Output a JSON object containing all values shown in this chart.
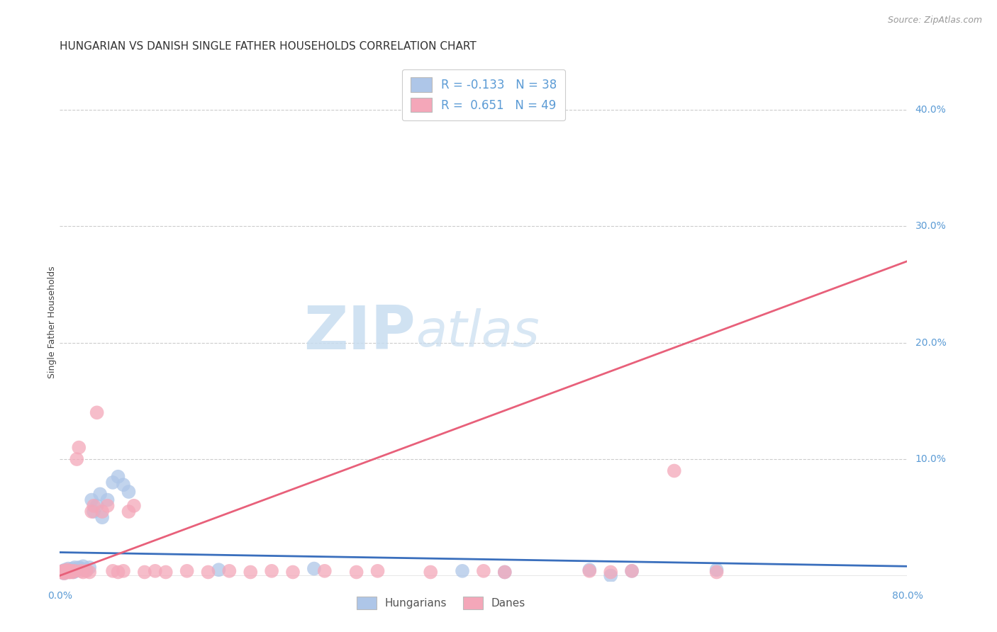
{
  "title": "HUNGARIAN VS DANISH SINGLE FATHER HOUSEHOLDS CORRELATION CHART",
  "source": "Source: ZipAtlas.com",
  "ylabel": "Single Father Households",
  "xlim": [
    0.0,
    0.8
  ],
  "ylim": [
    -0.005,
    0.44
  ],
  "plot_ylim": [
    0.0,
    0.44
  ],
  "yticks": [
    0.1,
    0.2,
    0.3,
    0.4
  ],
  "ytick_labels": [
    "10.0%",
    "20.0%",
    "30.0%",
    "40.0%"
  ],
  "xticks": [
    0.0,
    0.8
  ],
  "xtick_labels": [
    "0.0%",
    "80.0%"
  ],
  "hungarian_color": "#aec6e8",
  "danish_color": "#f4a7b9",
  "hungarian_line_color": "#3a6fbd",
  "danish_line_color": "#e8607a",
  "right_tick_color": "#5b9bd5",
  "bottom_tick_color": "#5b9bd5",
  "legend_label_hu": "R = -0.133   N = 38",
  "legend_label_da": "R =  0.651   N = 49",
  "watermark_ZIP": "ZIP",
  "watermark_atlas": "atlas",
  "background_color": "#ffffff",
  "title_fontsize": 11,
  "tick_fontsize": 10,
  "source_fontsize": 9,
  "hu_x": [
    0.002,
    0.003,
    0.004,
    0.005,
    0.006,
    0.007,
    0.008,
    0.009,
    0.01,
    0.011,
    0.012,
    0.013,
    0.014,
    0.015,
    0.016,
    0.018,
    0.02,
    0.022,
    0.025,
    0.028,
    0.03,
    0.032,
    0.035,
    0.038,
    0.04,
    0.045,
    0.05,
    0.055,
    0.06,
    0.065,
    0.15,
    0.24,
    0.38,
    0.42,
    0.5,
    0.52,
    0.54,
    0.62
  ],
  "hu_y": [
    0.003,
    0.004,
    0.002,
    0.005,
    0.003,
    0.004,
    0.006,
    0.003,
    0.005,
    0.004,
    0.006,
    0.003,
    0.007,
    0.004,
    0.005,
    0.007,
    0.006,
    0.008,
    0.005,
    0.007,
    0.065,
    0.055,
    0.06,
    0.07,
    0.05,
    0.065,
    0.08,
    0.085,
    0.078,
    0.072,
    0.005,
    0.006,
    0.004,
    0.003,
    0.005,
    0.0,
    0.004,
    0.005
  ],
  "da_x": [
    0.001,
    0.002,
    0.003,
    0.004,
    0.005,
    0.006,
    0.007,
    0.008,
    0.009,
    0.01,
    0.011,
    0.012,
    0.014,
    0.016,
    0.018,
    0.02,
    0.022,
    0.025,
    0.028,
    0.03,
    0.032,
    0.035,
    0.04,
    0.045,
    0.05,
    0.055,
    0.06,
    0.065,
    0.07,
    0.08,
    0.09,
    0.1,
    0.12,
    0.14,
    0.16,
    0.18,
    0.2,
    0.22,
    0.25,
    0.28,
    0.3,
    0.35,
    0.4,
    0.42,
    0.5,
    0.52,
    0.54,
    0.58,
    0.62
  ],
  "da_y": [
    0.003,
    0.003,
    0.004,
    0.002,
    0.004,
    0.003,
    0.005,
    0.003,
    0.004,
    0.003,
    0.004,
    0.003,
    0.004,
    0.1,
    0.11,
    0.004,
    0.003,
    0.004,
    0.003,
    0.055,
    0.06,
    0.14,
    0.055,
    0.06,
    0.004,
    0.003,
    0.004,
    0.055,
    0.06,
    0.003,
    0.004,
    0.003,
    0.004,
    0.003,
    0.004,
    0.003,
    0.004,
    0.003,
    0.004,
    0.003,
    0.004,
    0.003,
    0.004,
    0.003,
    0.004,
    0.003,
    0.004,
    0.09,
    0.003
  ],
  "hu_line_x": [
    0.0,
    0.8
  ],
  "hu_line_y": [
    0.02,
    0.008
  ],
  "da_line_x": [
    0.0,
    0.8
  ],
  "da_line_y": [
    0.0,
    0.27
  ]
}
